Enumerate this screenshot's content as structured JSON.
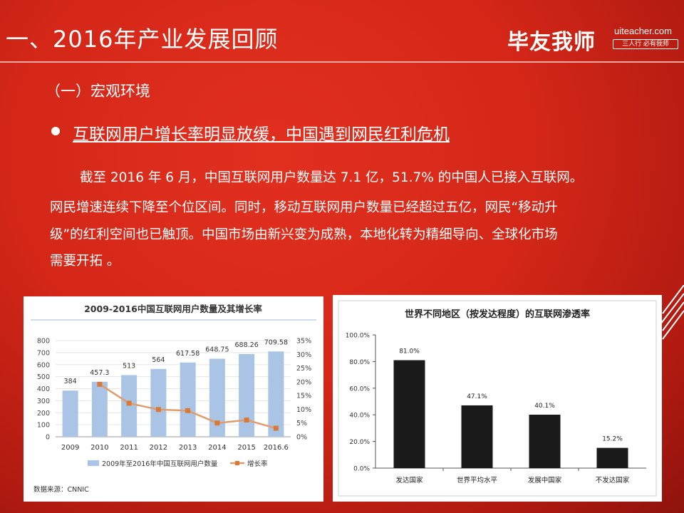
{
  "header": {
    "title": "一、2016年产业发展回顾",
    "logo_cn": "毕友我师",
    "logo_url": "uiteacher.com",
    "logo_slogan": "三人行 必有我师"
  },
  "section": {
    "title": "（一）宏观环境",
    "bullet": "互联网用户增长率明显放缓，中国遇到网民红利危机",
    "paragraph_lines": [
      "截至 2016 年 6 月，中国互联网用户数量达 7.1 亿，51.7% 的中国人已接入互联网。",
      "网民增速连续下降至个位区间。同时，移动互联网用户数量已经超过五亿，网民“移动升",
      "级”的红利空间也已触顶。中国市场由新兴变为成熟，本地化转为精细导向、全球化市场",
      "需要开拓 。"
    ]
  },
  "chart_data": [
    {
      "type": "bar",
      "title": "2009-2016中国互联网用户数量及其增长率",
      "categories": [
        "2009",
        "2010",
        "2011",
        "2012",
        "2013",
        "2014",
        "2015",
        "2016.6"
      ],
      "series": [
        {
          "name": "2009年至2016年中国互联网用户数量",
          "type": "bar",
          "axis": "left",
          "values": [
            384,
            457.3,
            513,
            564,
            617.58,
            648.75,
            688.26,
            709.58
          ],
          "labels": [
            "384",
            "457.3",
            "513",
            "564",
            "617.58",
            "648.75",
            "688.26",
            "709.58"
          ]
        },
        {
          "name": "增长率",
          "type": "line",
          "axis": "right",
          "values": [
            null,
            19.1,
            12.2,
            9.9,
            9.5,
            5.0,
            6.1,
            3.1
          ]
        }
      ],
      "ylim_left": [
        0,
        800
      ],
      "yticks_left": [
        "0",
        "100",
        "200",
        "300",
        "400",
        "500",
        "600",
        "700",
        "800"
      ],
      "ylim_right": [
        0,
        35
      ],
      "yticks_right": [
        "0%",
        "5%",
        "10%",
        "15%",
        "20%",
        "25%",
        "30%",
        "35%"
      ],
      "source": "数据来源：CNNIC",
      "bar_color": "#a9c4e4",
      "line_color": "#e19c6b"
    },
    {
      "type": "bar",
      "title": "世界不同地区（按发达程度）的互联网渗透率",
      "categories": [
        "发达国家",
        "世界平均水平",
        "发展中国家",
        "不发达国家"
      ],
      "values": [
        81.0,
        47.1,
        40.1,
        15.2
      ],
      "labels": [
        "81.0%",
        "47.1%",
        "40.1%",
        "15.2%"
      ],
      "ylim": [
        0,
        100
      ],
      "yticks": [
        "0.0%",
        "20.0%",
        "40.0%",
        "60.0%",
        "80.0%",
        "100.0%"
      ],
      "bar_color": "#1a1a1a"
    }
  ]
}
